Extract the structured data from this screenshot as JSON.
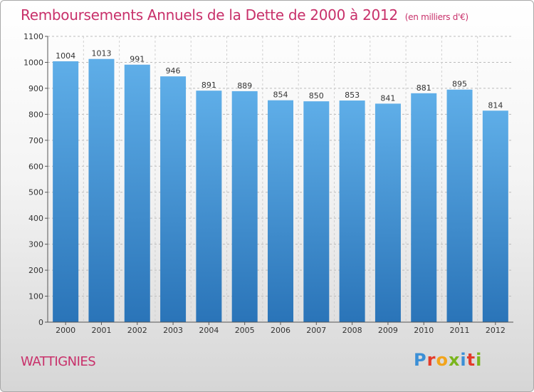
{
  "title": "Remboursements Annuels de la Dette de 2000 à 2012",
  "subtitle": "(en milliers d'€)",
  "commune": "WATTIGNIES",
  "logo": {
    "letters": [
      "P",
      "r",
      "o",
      "x",
      "i",
      "t",
      "i"
    ],
    "colors": [
      "#3b8fd6",
      "#e43b2a",
      "#f2a41b",
      "#7ab51d",
      "#3b8fd6",
      "#e43b2a",
      "#7ab51d"
    ]
  },
  "colors": {
    "bar_top": "#5faee8",
    "bar_bottom": "#2a74b8",
    "title": "#c8306a",
    "grid": "#bbbbbb"
  },
  "chart_data": {
    "type": "bar",
    "title": "Remboursements Annuels de la Dette de 2000 à 2012",
    "categories": [
      "2000",
      "2001",
      "2002",
      "2003",
      "2004",
      "2005",
      "2006",
      "2007",
      "2008",
      "2009",
      "2010",
      "2011",
      "2012"
    ],
    "values": [
      1004,
      1013,
      991,
      946,
      891,
      889,
      854,
      850,
      853,
      841,
      881,
      895,
      814
    ],
    "ylim": [
      0,
      1100
    ],
    "yticks": [
      0,
      100,
      200,
      300,
      400,
      500,
      600,
      700,
      800,
      900,
      1000,
      1100
    ],
    "grid": true,
    "data_labels": true
  }
}
